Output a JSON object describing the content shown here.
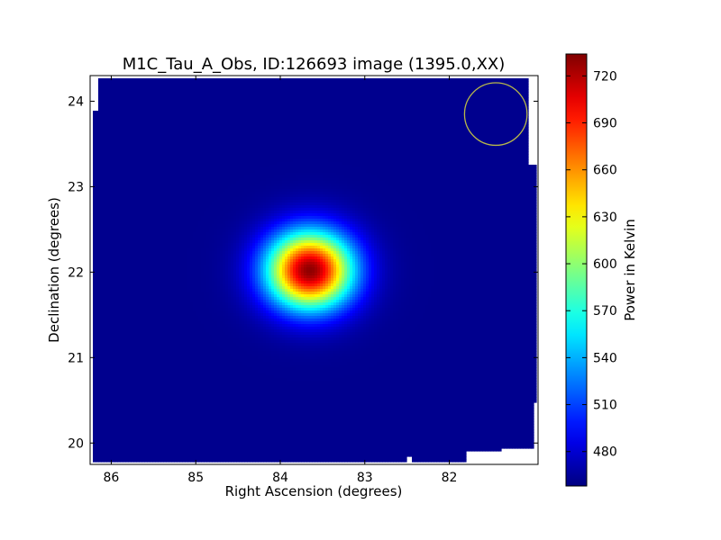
{
  "chart_data": {
    "type": "heatmap",
    "title": "M1C_Tau_A_Obs, ID:126693 image (1395.0,XX)",
    "xlabel": "Right Ascension (degrees)",
    "ylabel": "Declination (degrees)",
    "xlim": [
      86.25,
      80.95
    ],
    "ylim": [
      19.75,
      24.3
    ],
    "x_ticks": [
      86,
      85,
      84,
      83,
      82
    ],
    "y_ticks": [
      20,
      21,
      22,
      23,
      24
    ],
    "x_tick_labels": [
      "86",
      "85",
      "84",
      "83",
      "82"
    ],
    "y_tick_labels": [
      "20",
      "21",
      "22",
      "23",
      "24"
    ],
    "colorbar": {
      "label": "Power in Kelvin",
      "range": [
        458,
        734
      ],
      "ticks": [
        480,
        510,
        540,
        570,
        600,
        630,
        660,
        690,
        720
      ],
      "tick_labels": [
        "480",
        "510",
        "540",
        "570",
        "600",
        "630",
        "660",
        "690",
        "720"
      ],
      "colormap": "jet"
    },
    "background_level": 462,
    "source": {
      "ra": 83.65,
      "dec": 22.02,
      "peak": 730,
      "sigma_ra": 0.45,
      "sigma_dec": 0.4
    },
    "beam_circle": {
      "ra": 81.45,
      "dec": 23.85,
      "radius_deg": 0.37,
      "color": "#b8b84a"
    },
    "grid": false
  }
}
